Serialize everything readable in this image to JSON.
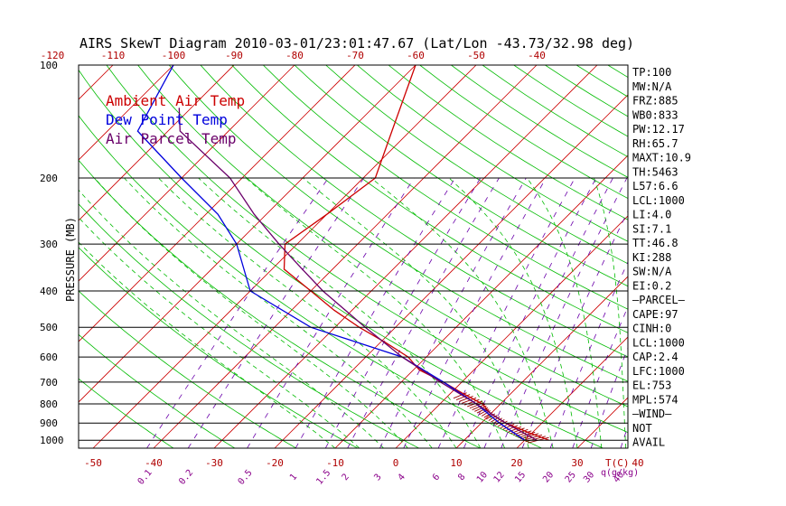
{
  "title": "AIRS SkewT Diagram 2010-03-01/23:01:47.67 (Lat/Lon -43.73/32.98 deg)",
  "colors": {
    "ambient": "#cc0000",
    "dewpoint": "#0000dd",
    "parcel": "#6a006a",
    "isotherm": "#cc0000",
    "dry_adiabat": "#00bb00",
    "moist_adiabat": "#00bb00",
    "mixing_ratio": "#6a00aa",
    "isobar": "#000000",
    "cape_hatch": "#990000"
  },
  "chart_data": {
    "type": "line",
    "title": "AIRS SkewT Diagram 2010-03-01/23:01:47.67 (Lat/Lon -43.73/32.98 deg)",
    "ylabel": "PRESSURE (MB)",
    "xlabel_bottom_unit": "T(C)",
    "mixing_ratio_unit": "q(g/kg)",
    "y_scale": "log",
    "ylim": [
      1050,
      100
    ],
    "pressure_ticks": [
      100,
      200,
      300,
      400,
      500,
      600,
      700,
      800,
      900,
      1000
    ],
    "temperature_ticks_bottom": [
      -50,
      -40,
      -30,
      -20,
      -10,
      0,
      10,
      20,
      30,
      40
    ],
    "temperature_ticks_top": [
      -120,
      -110,
      -100,
      -90,
      -80,
      -70,
      -60,
      -50,
      -40
    ],
    "mixing_ratio_labels": [
      "0.1",
      "0.2",
      "0.5",
      "1",
      "1.5",
      "2",
      "3",
      "4",
      "6",
      "8",
      "10",
      "12",
      "15",
      "20",
      "25",
      "30",
      "40"
    ],
    "grid": true,
    "legend_position": "top-left",
    "legend": [
      {
        "label": "Ambient Air Temp",
        "color": "#cc0000"
      },
      {
        "label": "Dew Point Temp",
        "color": "#0000dd"
      },
      {
        "label": "Air Parcel Temp",
        "color": "#6a006a"
      }
    ],
    "series": [
      {
        "name": "Ambient Air Temp",
        "points": [
          [
            1000,
            24
          ],
          [
            950,
            19
          ],
          [
            900,
            14
          ],
          [
            850,
            10
          ],
          [
            800,
            7
          ],
          [
            750,
            2
          ],
          [
            700,
            -3
          ],
          [
            650,
            -9
          ],
          [
            600,
            -13
          ],
          [
            550,
            -19
          ],
          [
            500,
            -26
          ],
          [
            450,
            -33
          ],
          [
            400,
            -40
          ],
          [
            350,
            -48
          ],
          [
            300,
            -52
          ],
          [
            250,
            -50
          ],
          [
            200,
            -48
          ],
          [
            150,
            -53
          ],
          [
            100,
            -60
          ]
        ]
      },
      {
        "name": "Dew Point Temp",
        "points": [
          [
            1000,
            20
          ],
          [
            900,
            13
          ],
          [
            800,
            6
          ],
          [
            700,
            -3
          ],
          [
            600,
            -14
          ],
          [
            500,
            -34
          ],
          [
            400,
            -50
          ],
          [
            300,
            -60
          ],
          [
            250,
            -68
          ],
          [
            200,
            -80
          ],
          [
            150,
            -95
          ],
          [
            100,
            -100
          ]
        ]
      },
      {
        "name": "Air Parcel Temp",
        "points": [
          [
            1000,
            22
          ],
          [
            900,
            14
          ],
          [
            800,
            6
          ],
          [
            700,
            -3.5
          ],
          [
            600,
            -14
          ],
          [
            500,
            -25
          ],
          [
            400,
            -38
          ],
          [
            350,
            -45
          ],
          [
            300,
            -53
          ],
          [
            250,
            -62
          ],
          [
            200,
            -72
          ],
          [
            150,
            -88
          ],
          [
            130,
            -92
          ]
        ]
      }
    ]
  },
  "side_panel": [
    "TP:100",
    "MW:N/A",
    "FRZ:885",
    "WB0:833",
    "PW:12.17",
    "RH:65.7",
    "MAXT:10.9",
    "TH:5463",
    "L57:6.6",
    "LCL:1000",
    "LI:4.0",
    "SI:7.1",
    "TT:46.8",
    "KI:288",
    "SW:N/A",
    "EI:0.2",
    "—PARCEL—",
    "CAPE:97",
    "CINH:0",
    "LCL:1000",
    "CAP:2.4",
    "LFC:1000",
    "EL:753",
    "MPL:574",
    "—WIND—",
    "NOT",
    "AVAIL"
  ]
}
